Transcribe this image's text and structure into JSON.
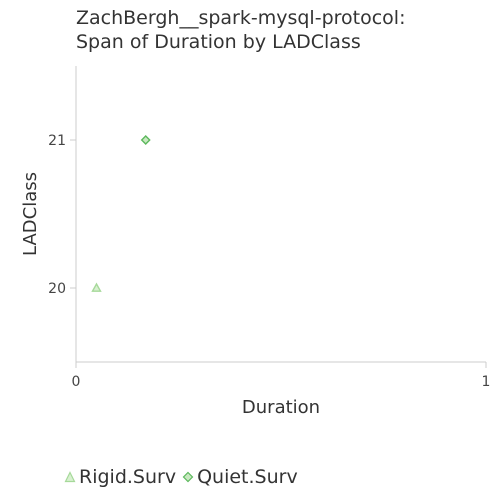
{
  "chart_data": {
    "type": "scatter",
    "title_lines": [
      "ZachBergh__spark-mysql-protocol:",
      "Span of Duration by LADClass"
    ],
    "xlabel": "Duration",
    "ylabel": "LADClass",
    "xlim": [
      0,
      1
    ],
    "ylim": [
      19.5,
      21.5
    ],
    "xticks": [
      0,
      1
    ],
    "yticks": [
      20,
      21
    ],
    "grid": false,
    "legend_position": "bottom-left",
    "series": [
      {
        "name": "Rigid.Surv",
        "marker": "triangle",
        "color": "#a6d99a",
        "points": [
          {
            "x": 0.05,
            "y": 20
          }
        ]
      },
      {
        "name": "Quiet.Surv",
        "marker": "diamond",
        "color": "#5cb85c",
        "points": [
          {
            "x": 0.17,
            "y": 21
          }
        ]
      }
    ]
  }
}
